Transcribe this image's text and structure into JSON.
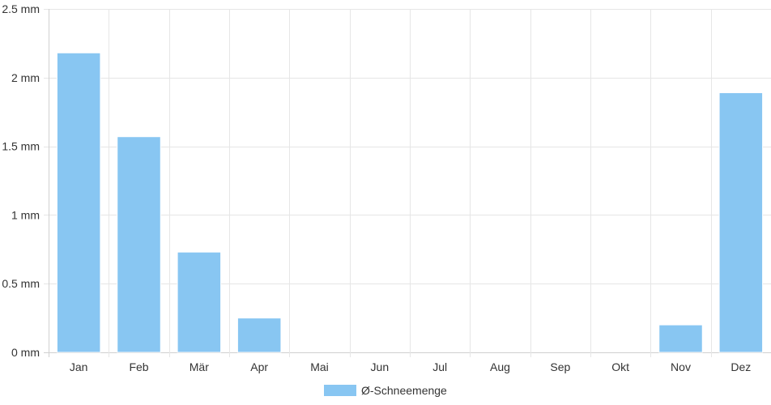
{
  "chart_data": {
    "type": "bar",
    "categories": [
      "Jan",
      "Feb",
      "Mär",
      "Apr",
      "Mai",
      "Jun",
      "Jul",
      "Aug",
      "Sep",
      "Okt",
      "Nov",
      "Dez"
    ],
    "series": [
      {
        "name": "Ø-Schneemenge",
        "color": "#88c6f2",
        "values": [
          2.18,
          1.57,
          0.73,
          0.25,
          0,
          0,
          0,
          0,
          0,
          0,
          0.2,
          1.89
        ]
      }
    ],
    "yticks": [
      {
        "value": 0,
        "label": "0 mm"
      },
      {
        "value": 0.5,
        "label": "0.5 mm"
      },
      {
        "value": 1,
        "label": "1 mm"
      },
      {
        "value": 1.5,
        "label": "1.5 mm"
      },
      {
        "value": 2,
        "label": "2 mm"
      },
      {
        "value": 2.5,
        "label": "2.5 mm"
      }
    ],
    "ylim": [
      0,
      2.5
    ],
    "grid": true,
    "legend_position": "bottom",
    "title": "",
    "xlabel": "",
    "ylabel": ""
  }
}
